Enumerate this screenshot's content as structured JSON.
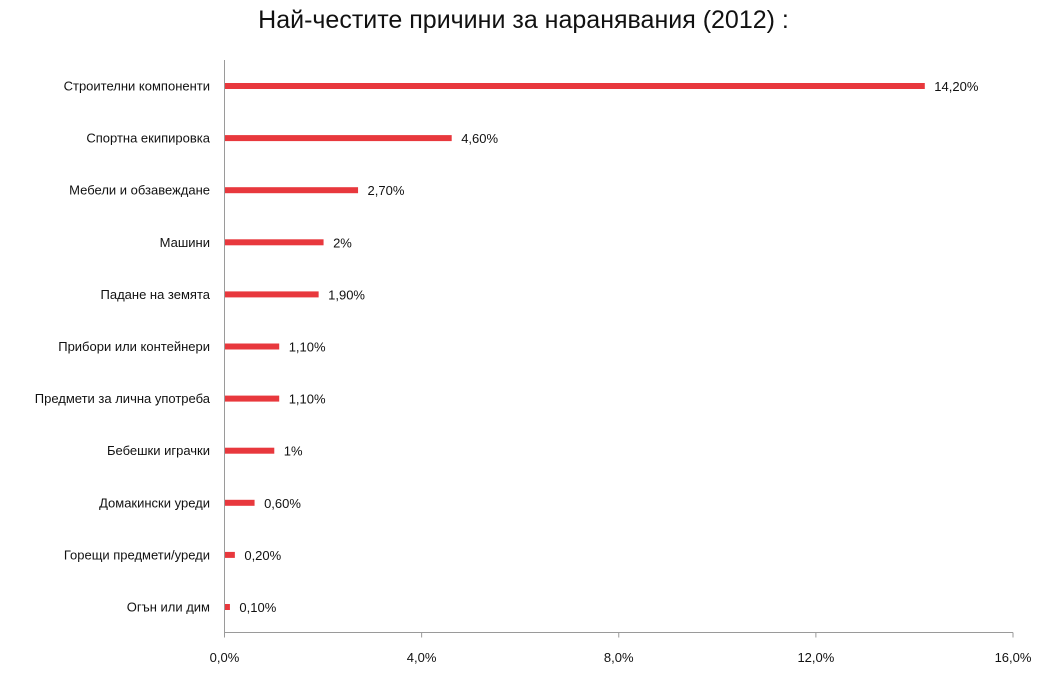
{
  "chart_data": {
    "type": "bar",
    "orientation": "horizontal",
    "title": "Най-честите причини за наранявания (2012) :",
    "categories": [
      "Строителни компоненти",
      "Спортна екипировка",
      "Мебели и обзавеждане",
      "Машини",
      "Падане на земята",
      "Прибори или контейнери",
      "Предмети за лична употреба",
      "Бебешки играчки",
      "Домакински уреди",
      "Горещи предмети/уреди",
      "Огън или дим"
    ],
    "values": [
      14.2,
      4.6,
      2.7,
      2.0,
      1.9,
      1.1,
      1.1,
      1.0,
      0.6,
      0.2,
      0.1
    ],
    "data_labels": [
      "14,20%",
      "4,60%",
      "2,70%",
      "2%",
      "1,90%",
      "1,10%",
      "1,10%",
      "1%",
      "0,60%",
      "0,20%",
      "0,10%"
    ],
    "xlim": [
      0,
      16
    ],
    "xticks": [
      0,
      4,
      8,
      12,
      16
    ],
    "xtick_labels": [
      "0,0%",
      "4,0%",
      "8,0%",
      "12,0%",
      "16,0%"
    ],
    "xlabel": "",
    "ylabel": "",
    "grid": false,
    "legend": "none",
    "bar_color": "#e8383d"
  }
}
